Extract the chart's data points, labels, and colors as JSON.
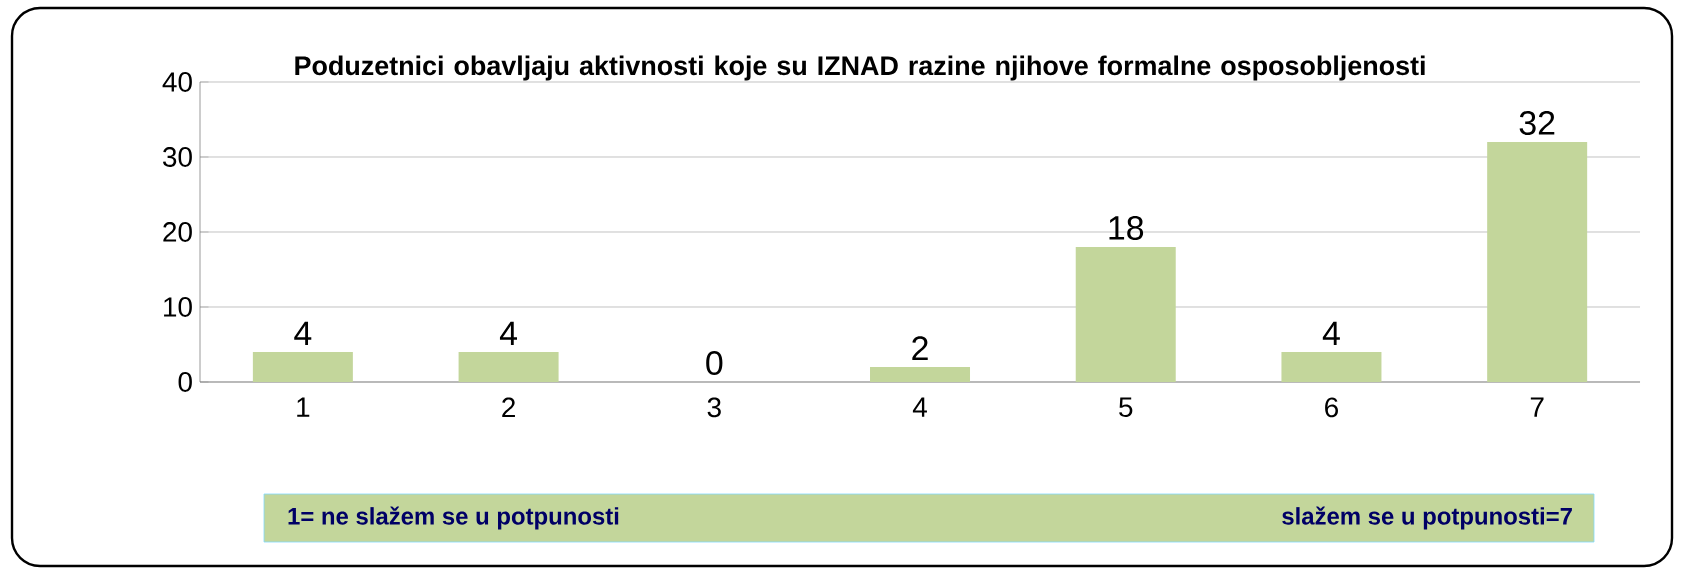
{
  "chart_data": {
    "type": "bar",
    "title": "Poduzetnici obavljaju aktivnosti koje su IZNAD razine njihove formalne osposobljenosti",
    "categories": [
      "1",
      "2",
      "3",
      "4",
      "5",
      "6",
      "7"
    ],
    "values": [
      4,
      4,
      0,
      2,
      18,
      4,
      32
    ],
    "color": "#c3d69b",
    "ylim": [
      0,
      40
    ],
    "yticks": [
      0,
      10,
      20,
      30,
      40
    ],
    "grid": "y",
    "data_labels": true,
    "annotations": [
      "1= ne slažem se u potpunosti",
      "slažem se u potpunosti=7"
    ]
  }
}
